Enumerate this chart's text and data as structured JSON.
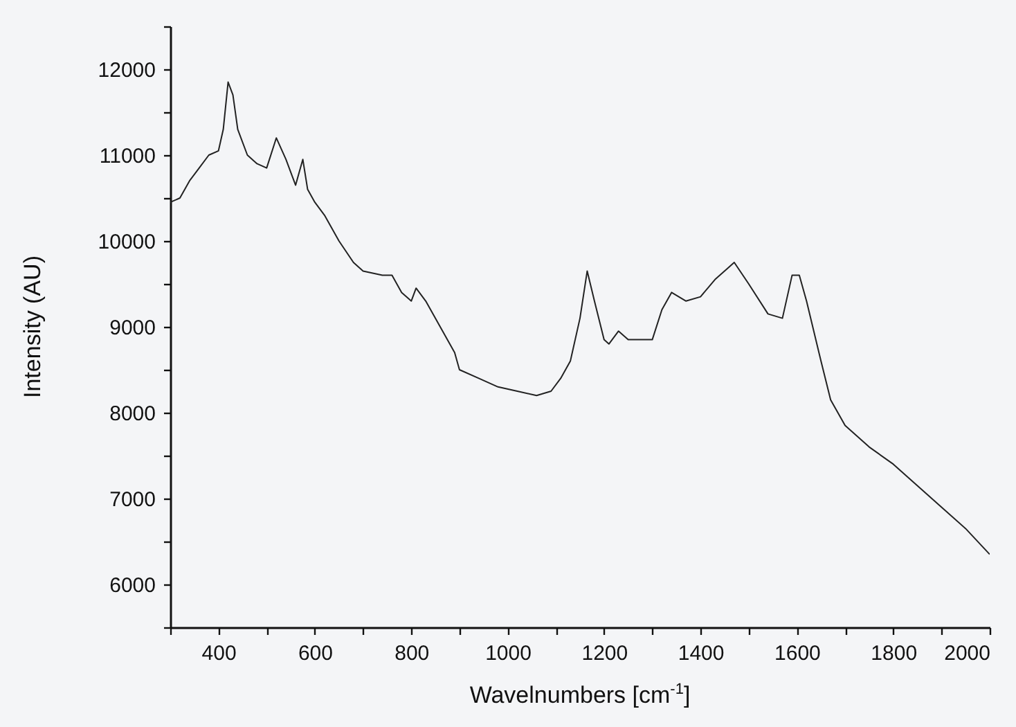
{
  "chart_data": {
    "type": "line",
    "xlabel": "Wavelnumbers [cm$^{-1}$]",
    "ylabel": "Intensity (AU)",
    "x": [
      300,
      320,
      340,
      360,
      380,
      400,
      410,
      420,
      430,
      440,
      460,
      480,
      500,
      520,
      540,
      560,
      575,
      585,
      600,
      620,
      650,
      680,
      700,
      740,
      760,
      780,
      800,
      810,
      830,
      860,
      890,
      900,
      940,
      980,
      1020,
      1060,
      1090,
      1110,
      1130,
      1150,
      1165,
      1180,
      1200,
      1210,
      1230,
      1250,
      1300,
      1320,
      1340,
      1370,
      1400,
      1430,
      1460,
      1470,
      1500,
      1540,
      1570,
      1590,
      1605,
      1620,
      1650,
      1670,
      1700,
      1750,
      1800,
      1850,
      1900,
      1950,
      2000
    ],
    "series": [
      {
        "color": "#222222",
        "values": [
          10450,
          10500,
          10700,
          10850,
          11000,
          11050,
          11300,
          11850,
          11700,
          11300,
          11000,
          10900,
          10850,
          11200,
          10950,
          10650,
          10950,
          10600,
          10450,
          10300,
          10000,
          9750,
          9650,
          9600,
          9600,
          9400,
          9300,
          9450,
          9300,
          9000,
          8700,
          8500,
          8400,
          8300,
          8250,
          8200,
          8250,
          8400,
          8600,
          9100,
          9650,
          9300,
          8850,
          8800,
          8950,
          8850,
          8850,
          9200,
          9400,
          9300,
          9350,
          9550,
          9700,
          9750,
          9500,
          9150,
          9100,
          9600,
          9600,
          9300,
          8600,
          8150,
          7850,
          7600,
          7400,
          7150,
          6900,
          6650,
          6350
        ]
      }
    ],
    "xlim": [
      300,
      2000
    ],
    "ylim": [
      5500,
      12500
    ],
    "xticks": [
      {
        "value": 300,
        "label": null
      },
      400,
      {
        "value": 500,
        "label": null
      },
      600,
      {
        "value": 700,
        "label": null
      },
      800,
      {
        "value": 900,
        "label": null
      },
      1000,
      {
        "value": 1100,
        "label": null
      },
      1200,
      {
        "value": 1300,
        "label": null
      },
      1400,
      {
        "value": 1500,
        "label": null
      },
      1600,
      {
        "value": 1700,
        "label": null
      },
      1800,
      {
        "value": 1900,
        "label": null
      },
      2000
    ],
    "yticks": [
      {
        "value": 5500,
        "label": null
      },
      6000,
      {
        "value": 6500,
        "label": null
      },
      7000,
      {
        "value": 7500,
        "label": null
      },
      8000,
      {
        "value": 8500,
        "label": null
      },
      9000,
      {
        "value": 9500,
        "label": null
      },
      10000,
      {
        "value": 10500,
        "label": null
      },
      11000,
      {
        "value": 11500,
        "label": null
      },
      12000,
      {
        "value": 12500,
        "label": null
      }
    ],
    "grid": false,
    "marker": "none",
    "line_style": "solid"
  }
}
